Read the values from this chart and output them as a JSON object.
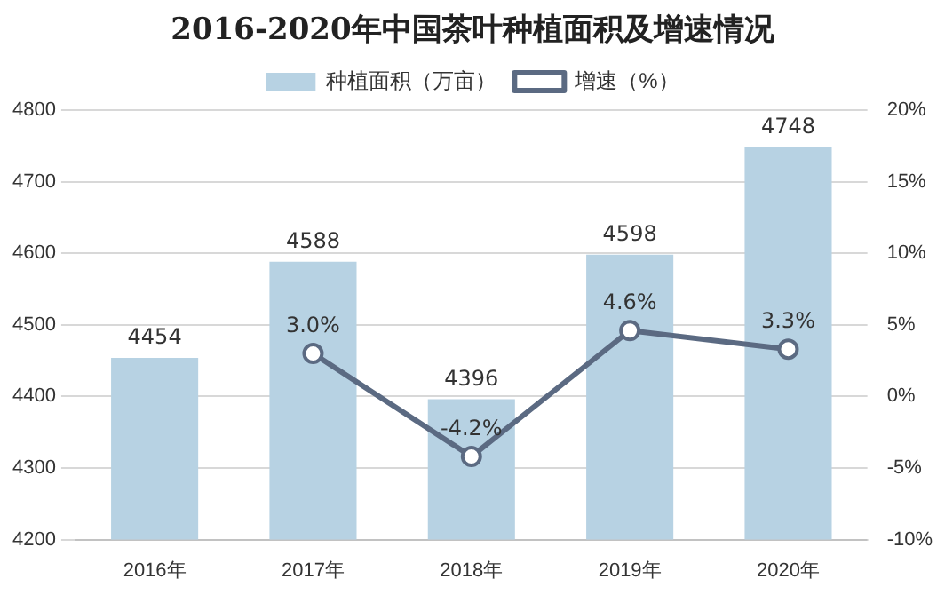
{
  "chart_data": {
    "type": "bar",
    "title": "2016-2020年中国茶叶种植面积及增速情况",
    "categories": [
      "2016年",
      "2017年",
      "2018年",
      "2019年",
      "2020年"
    ],
    "series": [
      {
        "name": "种植面积（万亩）",
        "color": "#b7d2e3",
        "values": [
          4454,
          4588,
          4396,
          4598,
          4748
        ],
        "value_labels": [
          "4454",
          "4588",
          "4396",
          "4598",
          "4748"
        ]
      },
      {
        "name": "增速（%）",
        "type": "line",
        "axis": "y2",
        "color": "#5b6a82",
        "values": [
          null,
          3.0,
          -4.2,
          4.6,
          3.3
        ],
        "value_labels": [
          null,
          "3.0%",
          "-4.2%",
          "4.6%",
          "3.3%"
        ]
      }
    ],
    "ylim": [
      4200,
      4800
    ],
    "yticks": [
      4200,
      4300,
      4400,
      4500,
      4600,
      4700,
      4800
    ],
    "y2lim": [
      -10,
      20
    ],
    "y2ticks": [
      {
        "value": -10,
        "label": "-10%"
      },
      {
        "value": -5,
        "label": "-5%"
      },
      {
        "value": 0,
        "label": "0%"
      },
      {
        "value": 5,
        "label": "5%"
      },
      {
        "value": 10,
        "label": "10%"
      },
      {
        "value": 15,
        "label": "15%"
      },
      {
        "value": 20,
        "label": "20%"
      }
    ],
    "grid": "y",
    "legend": "top",
    "marker": "circle",
    "line_style": "solid"
  }
}
